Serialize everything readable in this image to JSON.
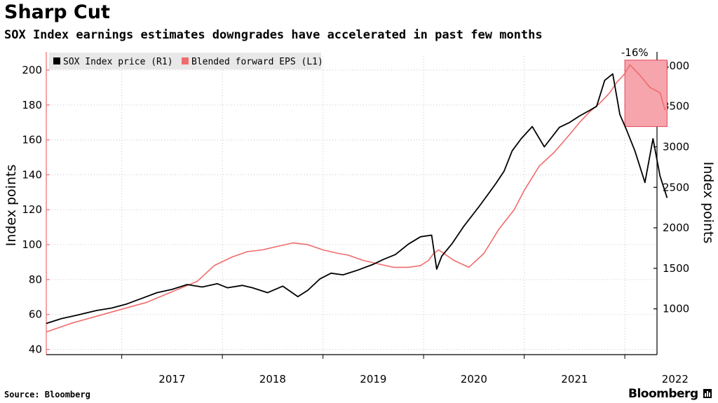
{
  "header": {
    "title": "Sharp Cut",
    "subtitle": "SOX Index earnings estimates downgrades have accelerated in past few months"
  },
  "footer": {
    "source": "Source: Bloomberg",
    "brand": "Bloomberg"
  },
  "chart_data": {
    "type": "line",
    "xlabel": "",
    "ylabel": "Index points",
    "y2label": "Index points",
    "x_ticks": [
      "2017",
      "2018",
      "2019",
      "2020",
      "2021",
      "2022"
    ],
    "ylim": [
      37,
      208
    ],
    "y_ticks": [
      40,
      60,
      80,
      100,
      120,
      140,
      160,
      180,
      200
    ],
    "y2lim": [
      435,
      4120
    ],
    "y2_ticks": [
      1000,
      1500,
      2000,
      2500,
      3000,
      3500,
      4000
    ],
    "grid": true,
    "legend_position": "top-left",
    "colors": {
      "price": "#000000",
      "eps": "#f06b6b",
      "highlight": "#f6a5ad",
      "annotation": "#e8435a"
    },
    "annotation": {
      "text": "-16%",
      "x_range": [
        2022.0,
        2022.42
      ],
      "y_range": [
        3250,
        4070
      ]
    },
    "series": [
      {
        "name": "SOX Index price (R1)",
        "axis": "right",
        "x": [
          2016.25,
          2016.4,
          2016.55,
          2016.75,
          2016.9,
          2017.05,
          2017.2,
          2017.35,
          2017.5,
          2017.65,
          2017.8,
          2017.95,
          2018.05,
          2018.2,
          2018.3,
          2018.45,
          2018.6,
          2018.75,
          2018.85,
          2018.97,
          2019.08,
          2019.2,
          2019.35,
          2019.5,
          2019.6,
          2019.72,
          2019.85,
          2019.97,
          2020.08,
          2020.13,
          2020.18,
          2020.28,
          2020.4,
          2020.55,
          2020.65,
          2020.72,
          2020.8,
          2020.88,
          2020.97,
          2021.08,
          2021.2,
          2021.35,
          2021.45,
          2021.55,
          2021.65,
          2021.72,
          2021.8,
          2021.88,
          2021.95,
          2022.02,
          2022.1,
          2022.2,
          2022.28,
          2022.35,
          2022.42
        ],
        "values": [
          820,
          880,
          920,
          980,
          1010,
          1060,
          1130,
          1200,
          1240,
          1300,
          1270,
          1310,
          1260,
          1290,
          1260,
          1200,
          1280,
          1150,
          1230,
          1370,
          1440,
          1420,
          1480,
          1550,
          1610,
          1670,
          1800,
          1890,
          1910,
          1490,
          1650,
          1800,
          2020,
          2260,
          2430,
          2550,
          2700,
          2950,
          3100,
          3250,
          3000,
          3240,
          3300,
          3380,
          3450,
          3500,
          3820,
          3900,
          3400,
          3200,
          2950,
          2560,
          3100,
          2640,
          2370
        ]
      },
      {
        "name": "Blended forward EPS (L1)",
        "axis": "left",
        "x": [
          2016.25,
          2016.5,
          2016.75,
          2017.0,
          2017.25,
          2017.5,
          2017.75,
          2017.92,
          2018.1,
          2018.25,
          2018.4,
          2018.55,
          2018.7,
          2018.85,
          2019.0,
          2019.15,
          2019.25,
          2019.4,
          2019.55,
          2019.7,
          2019.85,
          2019.97,
          2020.05,
          2020.1,
          2020.15,
          2020.3,
          2020.45,
          2020.6,
          2020.75,
          2020.9,
          2021.0,
          2021.15,
          2021.3,
          2021.45,
          2021.55,
          2021.65,
          2021.75,
          2021.85,
          2021.92,
          2021.97,
          2022.0,
          2022.05,
          2022.15,
          2022.25,
          2022.35,
          2022.4
        ],
        "values": [
          50,
          55,
          59,
          63,
          67,
          73,
          79,
          88,
          93,
          96,
          97,
          99,
          101,
          100,
          97,
          95,
          94,
          91,
          89,
          87,
          87,
          88,
          91,
          95,
          97,
          91,
          87,
          95,
          109,
          120,
          131,
          145,
          153,
          163,
          170,
          176,
          181,
          187,
          193,
          196,
          198,
          203,
          197,
          190,
          187,
          177
        ]
      }
    ]
  }
}
